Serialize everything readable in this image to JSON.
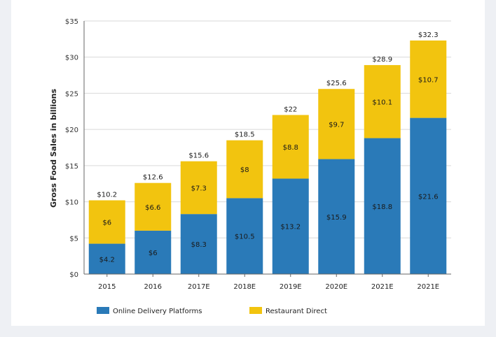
{
  "chart_data": {
    "type": "bar",
    "stacked": true,
    "ylabel": "Gross Food Sales in billions",
    "xlabel": "",
    "ylim": [
      0,
      35
    ],
    "y_ticks": [
      "$0",
      "$5",
      "$10",
      "$15",
      "$20",
      "$25",
      "$30",
      "$35"
    ],
    "categories": [
      "2015",
      "2016",
      "2017E",
      "2018E",
      "2019E",
      "2020E",
      "2021E",
      "2021E"
    ],
    "series": [
      {
        "name": "Online Delivery Platforms",
        "color": "#2a7ab8",
        "values": [
          4.2,
          6,
          8.3,
          10.5,
          13.2,
          15.9,
          18.8,
          21.6
        ],
        "labels": [
          "$4.2",
          "$6",
          "$8.3",
          "$10.5",
          "$13.2",
          "$15.9",
          "$18.8",
          "$21.6"
        ]
      },
      {
        "name": "Restaurant Direct",
        "color": "#f2c40f",
        "values": [
          6,
          6.6,
          7.3,
          8,
          8.8,
          9.7,
          10.1,
          10.7
        ],
        "labels": [
          "$6",
          "$6.6",
          "$7.3",
          "$8",
          "$8.8",
          "$9.7",
          "$10.1",
          "$10.7"
        ]
      }
    ],
    "totals": [
      10.2,
      12.6,
      15.6,
      18.5,
      22,
      25.6,
      28.9,
      32.3
    ],
    "total_labels": [
      "$10.2",
      "$12.6",
      "$15.6",
      "$18.5",
      "$22",
      "$25.6",
      "$28.9",
      "$32.3"
    ],
    "grid": true,
    "legend_position": "bottom-left"
  }
}
